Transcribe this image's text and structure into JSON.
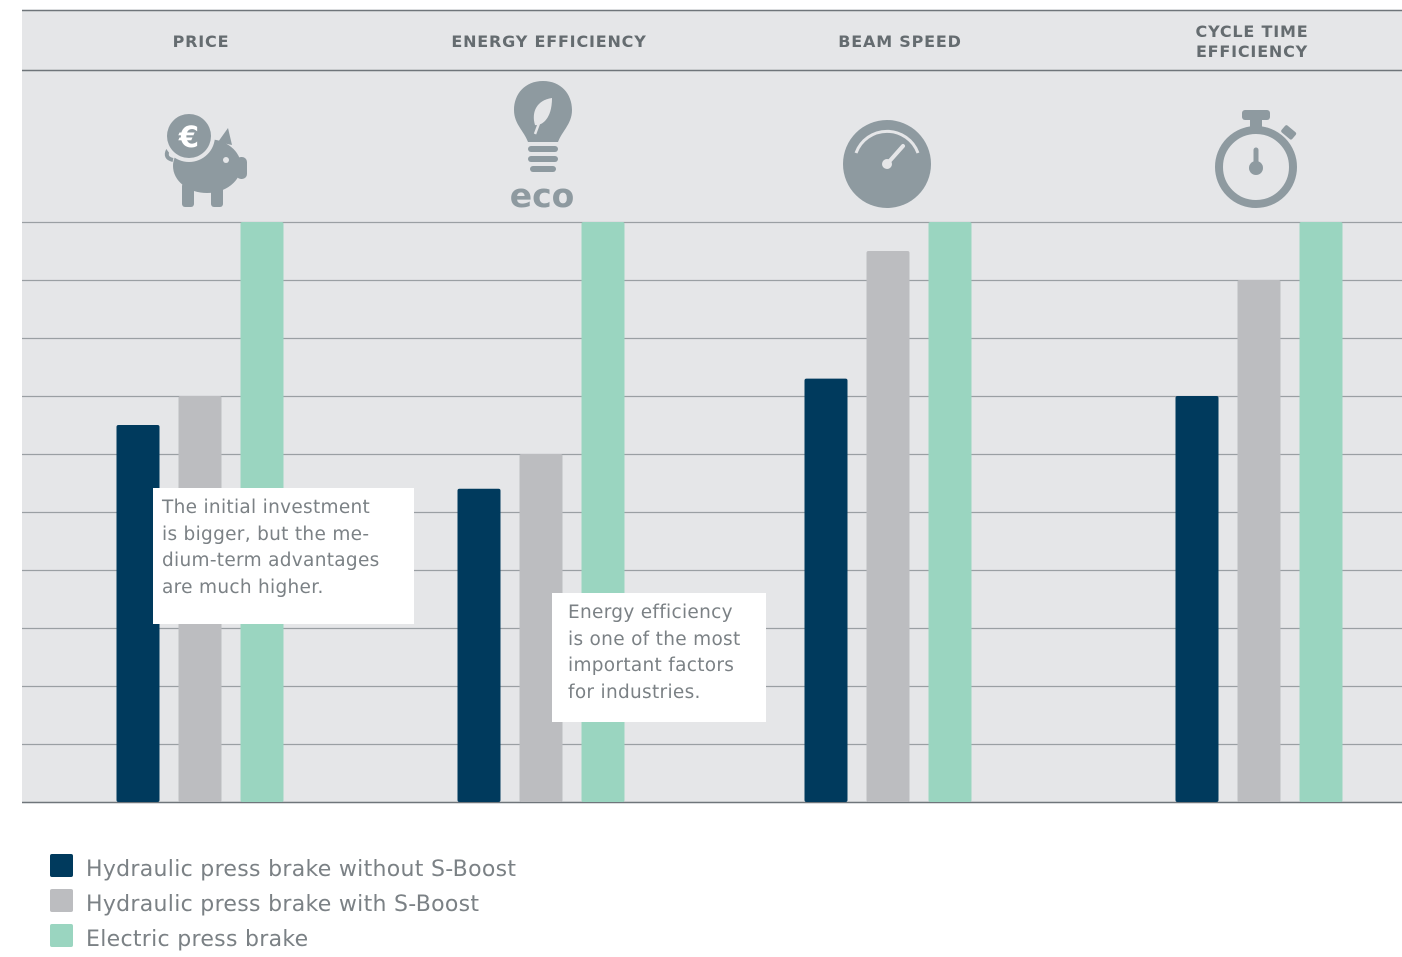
{
  "chart_data": {
    "type": "bar",
    "categories": [
      "PRICE",
      "ENERGY EFFICIENCY",
      "BEAM SPEED",
      "CYCLE TIME EFFICIENCY"
    ],
    "series": [
      {
        "name": "Hydraulic press brake without S-Boost",
        "color": "#003a5d",
        "values": [
          6.5,
          5.4,
          7.3,
          7.0
        ]
      },
      {
        "name": "Hydraulic press brake with S-Boost",
        "color": "#bcbdc0",
        "values": [
          7.0,
          6.0,
          9.5,
          9.0
        ]
      },
      {
        "name": "Electric press brake",
        "color": "#9ad5c0",
        "values": [
          10,
          10,
          10,
          10
        ]
      }
    ],
    "ylim": [
      0,
      10
    ],
    "grid": true,
    "legend": "bottom-left",
    "title": "",
    "xlabel": "",
    "ylabel": "",
    "icons": [
      "piggy-bank-euro-icon",
      "eco-lightbulb-icon",
      "speedometer-icon",
      "stopwatch-icon"
    ],
    "icon_labels": {
      "eco": "eco"
    }
  },
  "annotations": {
    "price": [
      "The initial investment",
      "is bigger, but the me-",
      "dium-term advantages",
      "are much higher."
    ],
    "energy": [
      "Energy efficiency",
      "is one of the most",
      "important factors",
      "for industries."
    ]
  },
  "colors": {
    "panel": "#e5e6e8",
    "gridline": "#9a9fa3",
    "icon": "#8e9aa0",
    "label": "#656c70"
  }
}
